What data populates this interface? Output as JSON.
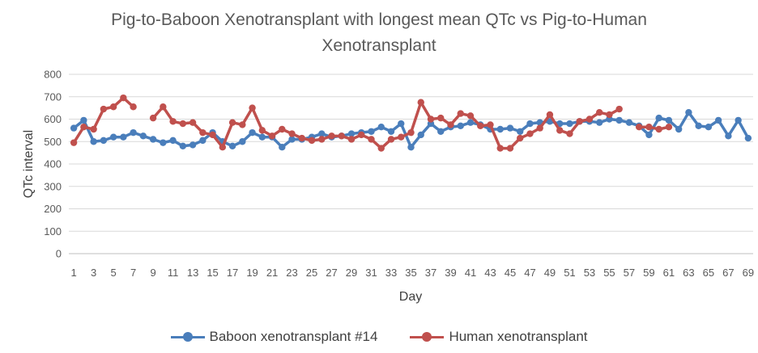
{
  "chart_data": {
    "type": "line",
    "title_line1": "Pig-to-Baboon Xenotransplant with longest mean QTc vs Pig-to-Human",
    "title_line2": "Xenotransplant",
    "xlabel": "Day",
    "ylabel": "QTc interval",
    "ylim": [
      0,
      800
    ],
    "ytick_step": 100,
    "x": [
      1,
      2,
      3,
      4,
      5,
      6,
      7,
      8,
      9,
      10,
      11,
      12,
      13,
      14,
      15,
      16,
      17,
      18,
      19,
      20,
      21,
      22,
      23,
      24,
      25,
      26,
      27,
      28,
      29,
      30,
      31,
      32,
      33,
      34,
      35,
      36,
      37,
      38,
      39,
      40,
      41,
      42,
      43,
      44,
      45,
      46,
      47,
      48,
      49,
      50,
      51,
      52,
      53,
      54,
      55,
      56,
      57,
      58,
      59,
      60,
      61,
      62,
      63,
      64,
      65,
      66,
      67,
      68,
      69
    ],
    "xtick_labels": [
      1,
      3,
      5,
      7,
      9,
      11,
      13,
      15,
      17,
      19,
      21,
      23,
      25,
      27,
      29,
      31,
      33,
      35,
      37,
      39,
      41,
      43,
      45,
      47,
      49,
      51,
      53,
      55,
      57,
      59,
      61,
      63,
      65,
      67,
      69
    ],
    "series": [
      {
        "name": "Baboon xenotransplant #14",
        "color": "#4a7ebb",
        "values": [
          560,
          595,
          500,
          505,
          520,
          520,
          540,
          525,
          510,
          495,
          505,
          480,
          485,
          505,
          540,
          500,
          480,
          500,
          540,
          520,
          520,
          475,
          510,
          510,
          520,
          535,
          520,
          525,
          535,
          540,
          545,
          565,
          545,
          580,
          475,
          530,
          580,
          545,
          565,
          570,
          585,
          575,
          555,
          555,
          560,
          545,
          580,
          585,
          590,
          580,
          580,
          590,
          590,
          585,
          600,
          595,
          585,
          570,
          530,
          605,
          595,
          555,
          630,
          570,
          565,
          595,
          525,
          595,
          515
        ]
      },
      {
        "name": "Human xenotransplant",
        "color": "#c0504d",
        "values": [
          495,
          565,
          555,
          645,
          655,
          695,
          655,
          null,
          605,
          655,
          590,
          580,
          585,
          540,
          530,
          475,
          585,
          575,
          650,
          550,
          525,
          555,
          535,
          515,
          505,
          510,
          525,
          525,
          510,
          530,
          510,
          470,
          510,
          520,
          540,
          675,
          600,
          605,
          575,
          625,
          615,
          570,
          575,
          470,
          470,
          515,
          535,
          560,
          620,
          550,
          535,
          590,
          600,
          630,
          620,
          645,
          null,
          565,
          565,
          555,
          565,
          null,
          null,
          null,
          null,
          null,
          null,
          null,
          null
        ]
      }
    ],
    "legend_position": "bottom"
  }
}
